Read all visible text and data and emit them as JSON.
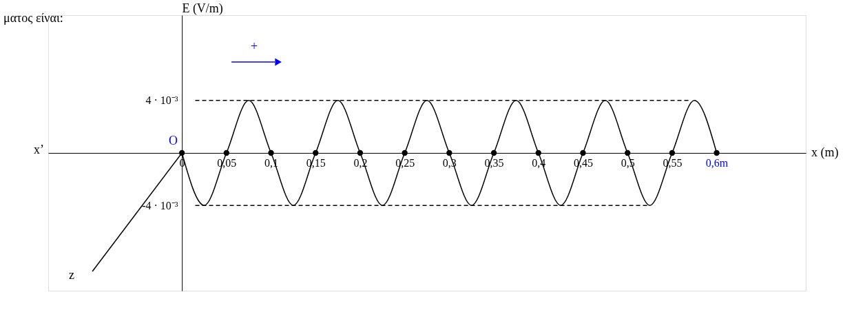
{
  "chart_data": {
    "type": "line",
    "xlabel": "x (m)",
    "ylabel": "E (V/m)",
    "xlim": [
      -0.15,
      0.7
    ],
    "ylim": [
      -0.0105,
      0.0105
    ],
    "xticks": [
      {
        "value": 0,
        "label": "0"
      },
      {
        "value": 0.05,
        "label": "0,05"
      },
      {
        "value": 0.1,
        "label": "0,1"
      },
      {
        "value": 0.15,
        "label": "0,15"
      },
      {
        "value": 0.2,
        "label": "0,2"
      },
      {
        "value": 0.25,
        "label": "0,25"
      },
      {
        "value": 0.3,
        "label": "0,3"
      },
      {
        "value": 0.35,
        "label": "0,35"
      },
      {
        "value": 0.4,
        "label": "0,4"
      },
      {
        "value": 0.45,
        "label": "0,45"
      },
      {
        "value": 0.5,
        "label": "0,5"
      },
      {
        "value": 0.55,
        "label": "0,55"
      },
      {
        "value": 0.6,
        "label": "0,6m"
      }
    ],
    "yticks": [
      {
        "value": -0.004,
        "label": "-4 · 10⁻³"
      },
      {
        "value": 0.004,
        "label": "4 · 10⁻³"
      }
    ],
    "grid": false,
    "series": [
      {
        "color": "#000000",
        "x": [
          0,
          0.025,
          0.05,
          0.075,
          0.1,
          0.125,
          0.15,
          0.175,
          0.2,
          0.225,
          0.25,
          0.275,
          0.3,
          0.325,
          0.35,
          0.375,
          0.4,
          0.425,
          0.45,
          0.475,
          0.5,
          0.525,
          0.55,
          0.575,
          0.6
        ],
        "values": [
          0,
          -0.004,
          0,
          0.004,
          0,
          -0.004,
          0,
          0.004,
          0,
          -0.004,
          0,
          0.004,
          0,
          -0.004,
          0,
          0.004,
          0,
          -0.004,
          0,
          0.004,
          0,
          -0.004,
          0,
          0.004,
          0
        ]
      },
      {
        "type": "scatter",
        "color": "#000000",
        "x": [
          0,
          0.05,
          0.1,
          0.15,
          0.2,
          0.25,
          0.3,
          0.35,
          0.4,
          0.45,
          0.5,
          0.55,
          0.6
        ],
        "values": [
          0,
          0,
          0,
          0,
          0,
          0,
          0,
          0,
          0,
          0,
          0,
          0,
          0
        ]
      },
      {
        "type": "line",
        "line_style": "dashed",
        "color": "#000000",
        "x": [
          0.015,
          0.57
        ],
        "values": [
          0.004,
          0.004
        ]
      },
      {
        "type": "line",
        "line_style": "dashed",
        "color": "#000000",
        "x": [
          0.015,
          0.525
        ],
        "values": [
          -0.004,
          -0.004
        ]
      }
    ],
    "annotations": [
      "ματος είναι:",
      "x’",
      {
        "text": "O",
        "x": 0,
        "y": 0
      },
      "+",
      "z"
    ]
  }
}
